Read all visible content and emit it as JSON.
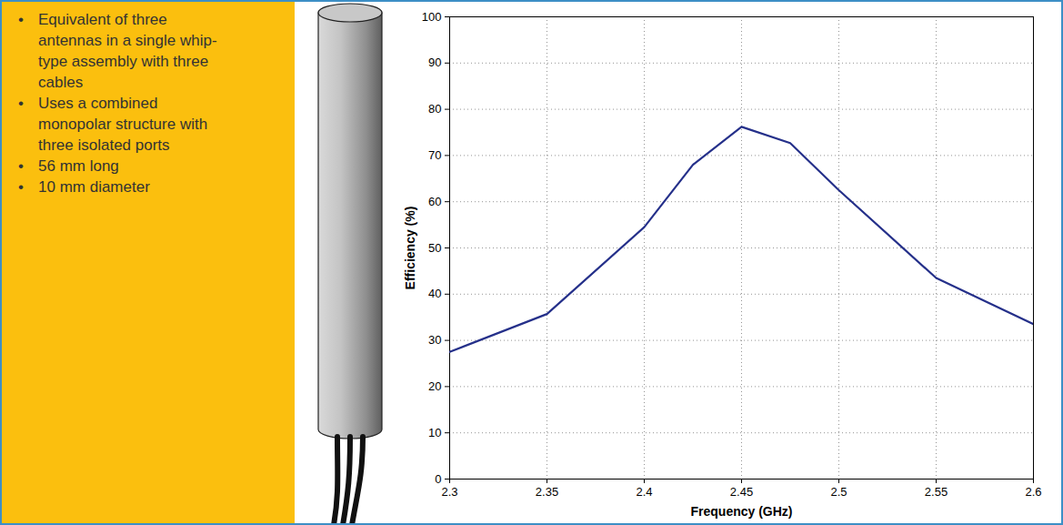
{
  "chart_data": {
    "type": "line",
    "annotations": [
      "Equivalent of three antennas in a single whip-type assembly with three cables",
      "Uses a combined monopolar structure with three isolated ports",
      "56 mm long",
      "10 mm diameter"
    ],
    "x_label": "Frequency (GHz)",
    "y_label": "Efficiency (%)",
    "x": [
      2.3,
      2.35,
      2.4,
      2.425,
      2.45,
      2.475,
      2.5,
      2.55,
      2.6
    ],
    "values": [
      27.5,
      35.7,
      54.5,
      68,
      76.2,
      72.7,
      62.5,
      43.5,
      33.5
    ],
    "color": "#25308a",
    "xlim": [
      2.3,
      2.6
    ],
    "xticks": [
      2.3,
      2.35,
      2.4,
      2.45,
      2.5,
      2.55,
      2.6
    ],
    "ylim": [
      0,
      100
    ],
    "yticks": [
      0,
      10,
      20,
      30,
      40,
      50,
      60,
      70,
      80,
      90,
      100
    ],
    "grid": true
  }
}
